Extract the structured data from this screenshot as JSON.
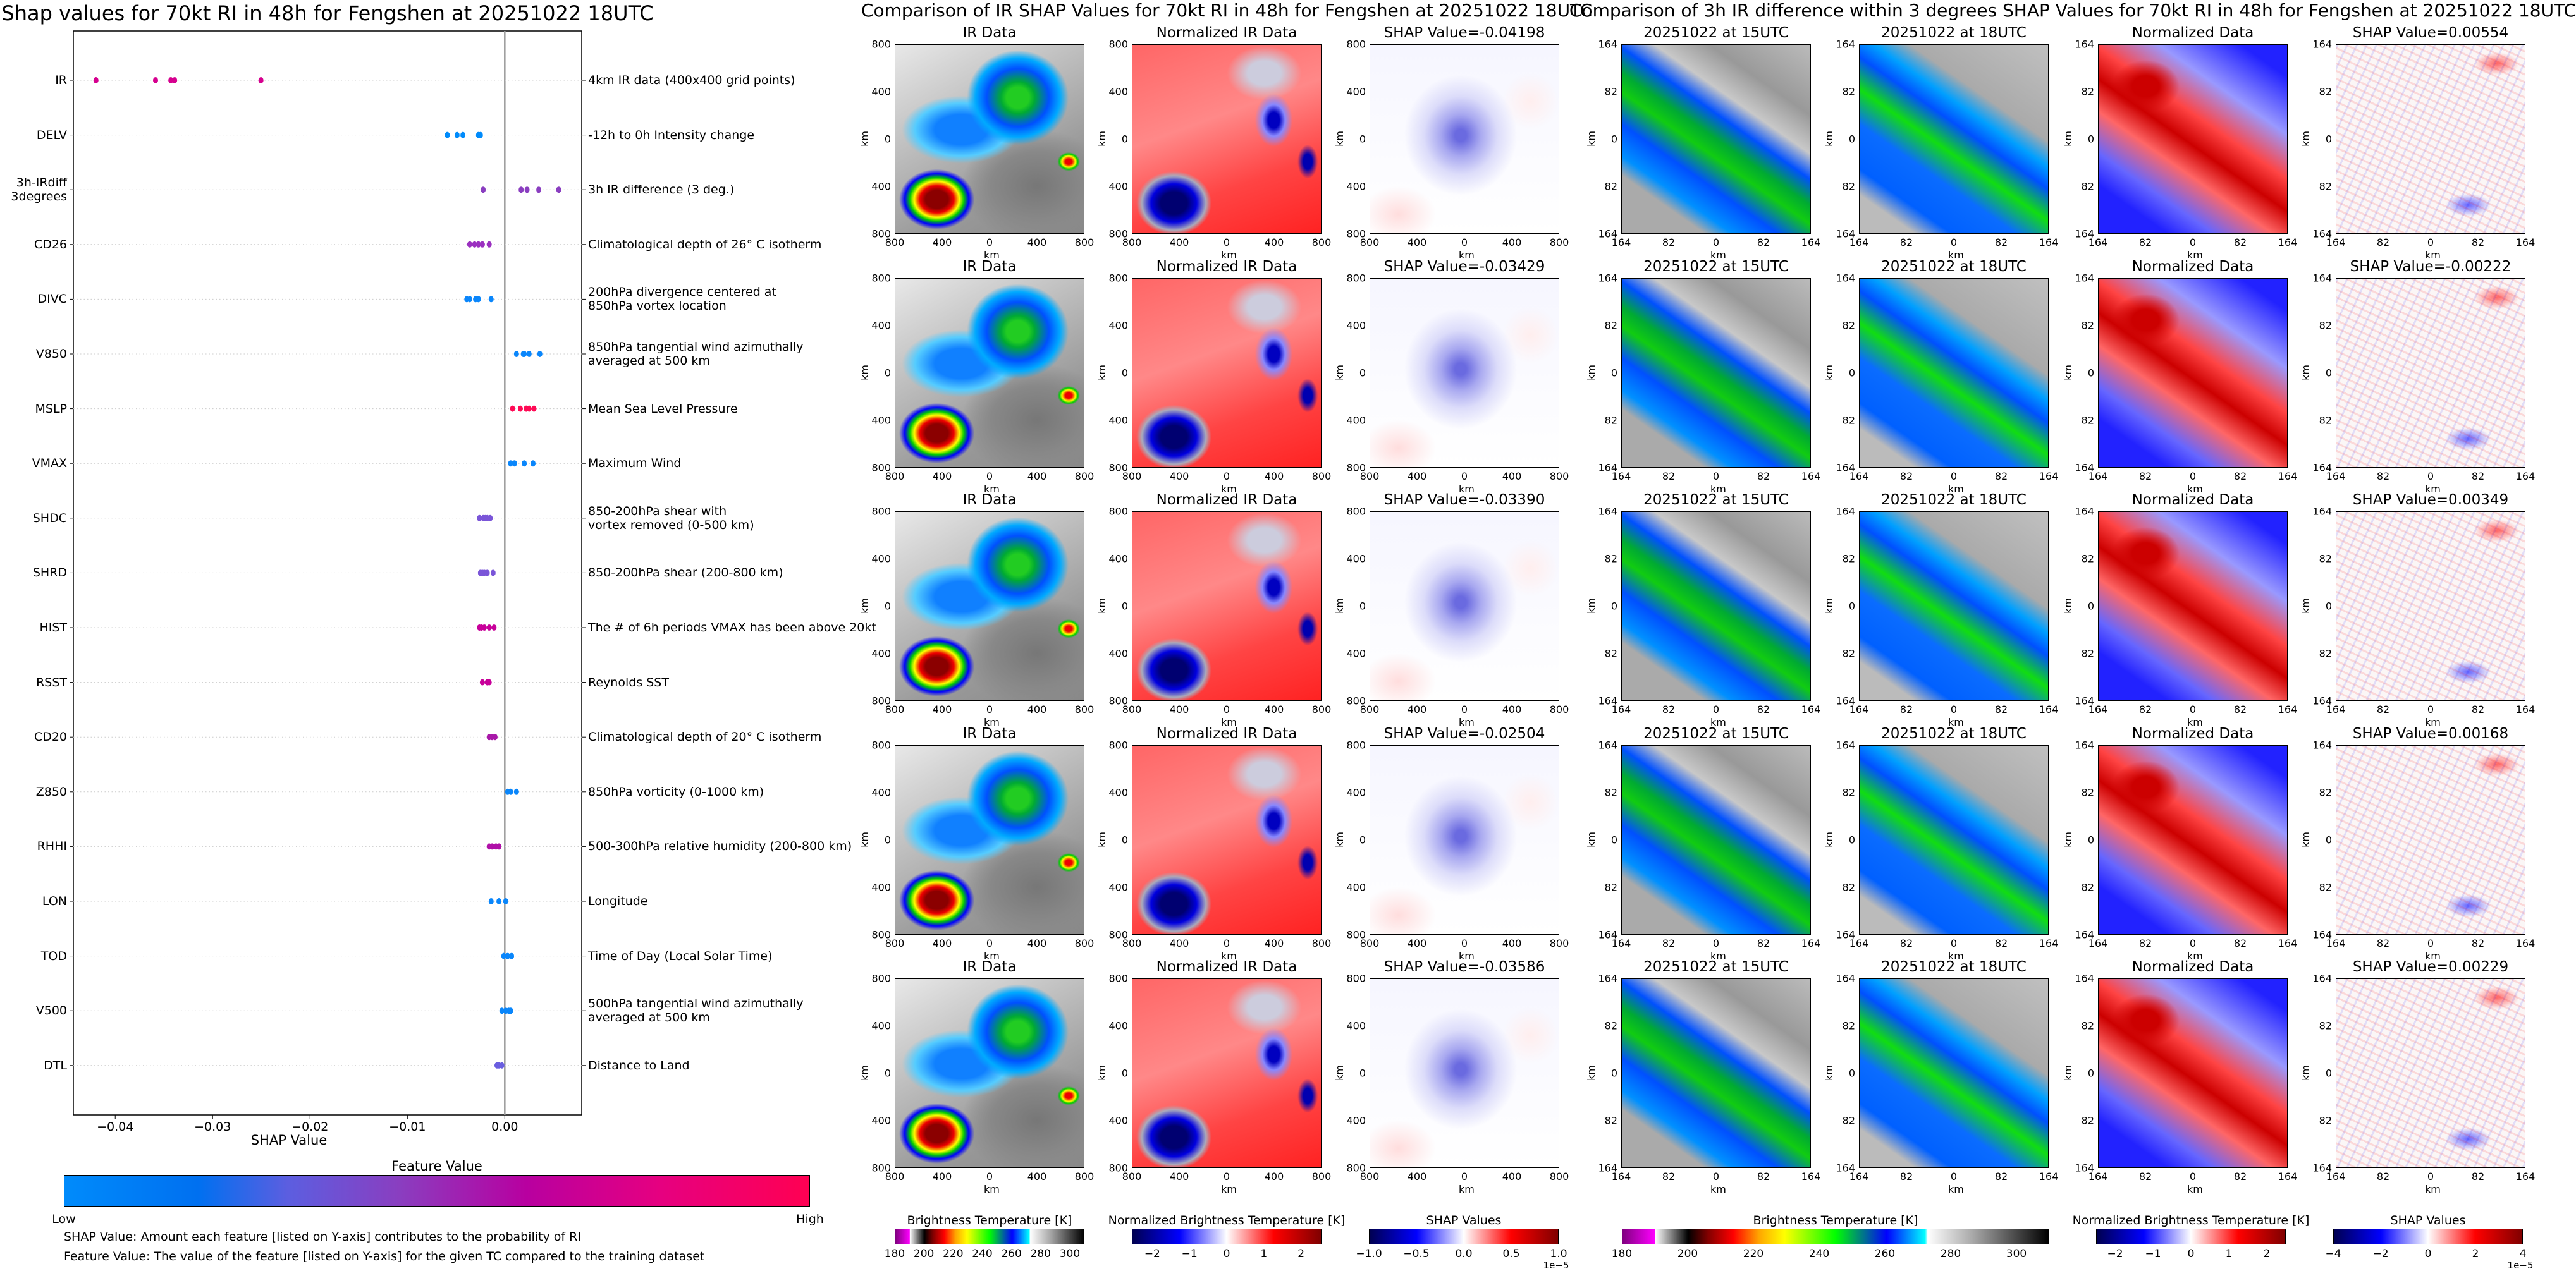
{
  "chart_data": [
    {
      "type": "scatter",
      "title": "Shap values for 70kt RI in 48h for Fengshen at 20251022 18UTC",
      "xlabel": "SHAP Value",
      "xlim": [
        -0.0443,
        0.0079
      ],
      "xticks": [
        -0.04,
        -0.03,
        -0.02,
        -0.01,
        0.0
      ],
      "xtick_labels": [
        "−0.04",
        "−0.03",
        "−0.02",
        "−0.01",
        "0.00"
      ],
      "features": [
        {
          "code": "IR",
          "description": "4km IR data (400x400 grid points)",
          "color": "#d6008f",
          "shap": [
            -0.04198,
            -0.03586,
            -0.03429,
            -0.0339,
            -0.02504
          ]
        },
        {
          "code": "DELV",
          "description": "-12h to 0h Intensity change",
          "color": "#008bfb",
          "shap": [
            -0.0059,
            -0.0049,
            -0.0043,
            -0.0027,
            -0.0025
          ]
        },
        {
          "code": "3h-IRdiff\n3degrees",
          "description": "3h IR difference (3 deg.)",
          "color": "#8a3ec0",
          "shap": [
            -0.00222,
            0.00168,
            0.00229,
            0.00349,
            0.00554
          ]
        },
        {
          "code": "CD26",
          "description": "Climatological depth of 26° C isotherm",
          "color": "#9b30c0",
          "shap": [
            -0.0036,
            -0.0031,
            -0.0027,
            -0.0023,
            -0.0016
          ]
        },
        {
          "code": "DIVC",
          "description": "200hPa divergence centered at\n850hPa vortex location",
          "color": "#0a86fb",
          "shap": [
            -0.0039,
            -0.0036,
            -0.003,
            -0.0027,
            -0.0014
          ]
        },
        {
          "code": "V850",
          "description": "850hPa tangential wind azimuthally\naveraged at 500 km",
          "color": "#0a86fb",
          "shap": [
            0.0012,
            0.0019,
            0.002,
            0.0025,
            0.0036
          ]
        },
        {
          "code": "MSLP",
          "description": "Mean Sea Level Pressure",
          "color": "#ff0a55",
          "shap": [
            0.0008,
            0.0016,
            0.0022,
            0.0025,
            0.003
          ]
        },
        {
          "code": "VMAX",
          "description": "Maximum Wind",
          "color": "#0a86fb",
          "shap": [
            0.0006,
            0.001,
            0.002,
            0.0029
          ]
        },
        {
          "code": "SHDC",
          "description": "850-200hPa shear with\nvortex removed (0-500 km)",
          "color": "#7a55d8",
          "shap": [
            -0.0026,
            -0.0022,
            -0.002,
            -0.0018,
            -0.0015
          ]
        },
        {
          "code": "SHRD",
          "description": "850-200hPa shear (200-800 km)",
          "color": "#7a55d8",
          "shap": [
            -0.0025,
            -0.0023,
            -0.0021,
            -0.0018,
            -0.0012
          ]
        },
        {
          "code": "HIST",
          "description": "The # of 6h periods VMAX has been above 20kt",
          "color": "#c8009a",
          "shap": [
            -0.0026,
            -0.0024,
            -0.0021,
            -0.0016,
            -0.0011
          ]
        },
        {
          "code": "RSST",
          "description": "Reynolds SST",
          "color": "#c8009a",
          "shap": [
            -0.0023,
            -0.0018,
            -0.0016
          ]
        },
        {
          "code": "CD20",
          "description": "Climatological depth of 20° C isotherm",
          "color": "#a818a8",
          "shap": [
            -0.0016,
            -0.0013,
            -0.001
          ]
        },
        {
          "code": "Z850",
          "description": "850hPa vorticity (0-1000 km)",
          "color": "#0a86fb",
          "shap": [
            0.0003,
            0.0006,
            0.0012
          ]
        },
        {
          "code": "RHHI",
          "description": "500-300hPa relative humidity (200-800 km)",
          "color": "#b010a8",
          "shap": [
            -0.0016,
            -0.0013,
            -0.0009,
            -0.0006
          ]
        },
        {
          "code": "LON",
          "description": "Longitude",
          "color": "#0a86fb",
          "shap": [
            -0.0014,
            -0.0006,
            0.0001
          ]
        },
        {
          "code": "TOD",
          "description": "Time of Day (Local Solar Time)",
          "color": "#0a86fb",
          "shap": [
            -0.0001,
            0.0003,
            0.0007
          ]
        },
        {
          "code": "V500",
          "description": "500hPa tangential wind azimuthally\naveraged at 500 km",
          "color": "#0a86fb",
          "shap": [
            -0.0003,
            0.0001,
            0.0004,
            0.0006
          ]
        },
        {
          "code": "DTL",
          "description": "Distance to Land",
          "color": "#6a5ee0",
          "shap": [
            -0.0008,
            -0.0006,
            -0.0003
          ]
        }
      ],
      "colorbar": {
        "title": "Feature Value",
        "low": "Low",
        "high": "High"
      },
      "notes": [
        "SHAP Value: Amount each feature [listed on Y-axis] contributes to the probability of RI",
        "Feature Value: The value of the feature [listed on Y-axis] for the given TC compared to the training dataset"
      ]
    }
  ],
  "ir_figure": {
    "title": "Comparison of IR SHAP Values for 70kt RI in 48h for Fengshen at 20251022 18UTC",
    "axis_label": "km",
    "ticks": [
      "800",
      "400",
      "0",
      "400",
      "800"
    ],
    "rows": [
      {
        "ir": "IR Data",
        "norm": "Normalized IR Data",
        "shap": "SHAP Value=-0.04198"
      },
      {
        "ir": "IR Data",
        "norm": "Normalized IR Data",
        "shap": "SHAP Value=-0.03429"
      },
      {
        "ir": "IR Data",
        "norm": "Normalized IR Data",
        "shap": "SHAP Value=-0.03390"
      },
      {
        "ir": "IR Data",
        "norm": "Normalized IR Data",
        "shap": "SHAP Value=-0.02504"
      },
      {
        "ir": "IR Data",
        "norm": "Normalized IR Data",
        "shap": "SHAP Value=-0.03586"
      }
    ],
    "colorbars": [
      {
        "label": "Brightness Temperature [K]",
        "range": [
          180,
          310
        ],
        "ticks": [
          "180",
          "200",
          "220",
          "240",
          "260",
          "280",
          "300"
        ],
        "tick_values": [
          180,
          200,
          220,
          240,
          260,
          280,
          300
        ],
        "style": "bt"
      },
      {
        "label": "Normalized Brightness Temperature [K]",
        "range": [
          -2.55,
          2.55
        ],
        "ticks": [
          "−2",
          "−1",
          "0",
          "1",
          "2"
        ],
        "tick_values": [
          -2,
          -1,
          0,
          1,
          2
        ],
        "style": "div"
      },
      {
        "label": "SHAP Values",
        "range": [
          -1,
          1
        ],
        "ticks": [
          "−1.0",
          "−0.5",
          "0.0",
          "0.5",
          "1.0"
        ],
        "tick_values": [
          -1,
          -0.5,
          0,
          0.5,
          1
        ],
        "style": "div",
        "scale": "1e−5"
      }
    ]
  },
  "diff_figure": {
    "title": "Comparison of 3h IR difference within 3 degrees SHAP Values for 70kt RI in 48h for Fengshen at 20251022 18UTC",
    "axis_label": "km",
    "ticks": [
      "164",
      "82",
      "0",
      "82",
      "164"
    ],
    "rows": [
      {
        "t15": "20251022 at 15UTC",
        "t18": "20251022 at 18UTC",
        "norm": "Normalized Data",
        "shap": "SHAP Value=0.00554"
      },
      {
        "t15": "20251022 at 15UTC",
        "t18": "20251022 at 18UTC",
        "norm": "Normalized Data",
        "shap": "SHAP Value=-0.00222"
      },
      {
        "t15": "20251022 at 15UTC",
        "t18": "20251022 at 18UTC",
        "norm": "Normalized Data",
        "shap": "SHAP Value=0.00349"
      },
      {
        "t15": "20251022 at 15UTC",
        "t18": "20251022 at 18UTC",
        "norm": "Normalized Data",
        "shap": "SHAP Value=0.00168"
      },
      {
        "t15": "20251022 at 15UTC",
        "t18": "20251022 at 18UTC",
        "norm": "Normalized Data",
        "shap": "SHAP Value=0.00229"
      }
    ],
    "colorbars": [
      {
        "label": "Brightness Temperature [K]",
        "range": [
          180,
          310
        ],
        "ticks": [
          "180",
          "200",
          "220",
          "240",
          "260",
          "280",
          "300"
        ],
        "tick_values": [
          180,
          200,
          220,
          240,
          260,
          280,
          300
        ],
        "style": "bt"
      },
      {
        "label": "Normalized Brightness Temperature [K]",
        "range": [
          -2.5,
          2.5
        ],
        "ticks": [
          "−2",
          "−1",
          "0",
          "1",
          "2"
        ],
        "tick_values": [
          -2,
          -1,
          0,
          1,
          2
        ],
        "style": "div"
      },
      {
        "label": "SHAP Values",
        "range": [
          -4,
          4
        ],
        "ticks": [
          "−4",
          "−2",
          "0",
          "2",
          "4"
        ],
        "tick_values": [
          -4,
          -2,
          0,
          2,
          4
        ],
        "style": "div",
        "scale": "1e−5"
      }
    ]
  }
}
